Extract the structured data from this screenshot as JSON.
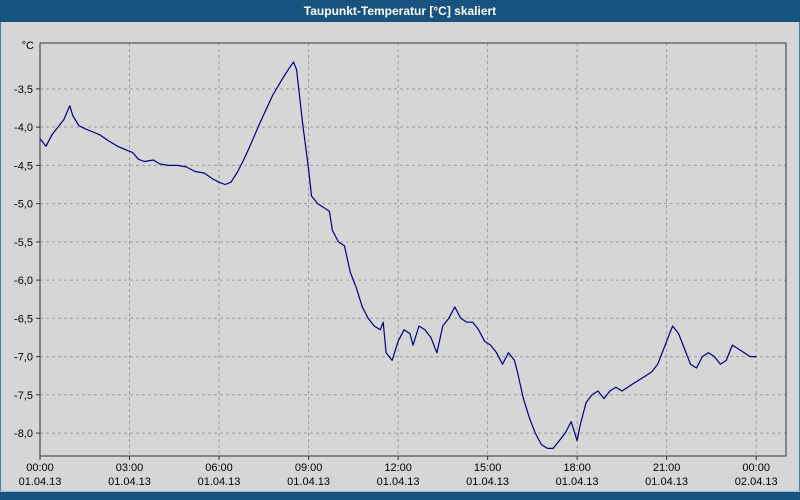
{
  "window": {
    "title": "Taupunkt-Temperatur [°C] skaliert"
  },
  "colors": {
    "title_bar_bg": "#17537e",
    "title_text": "#ffffff",
    "window_bg": "#d6d6d6",
    "grid": "#999999",
    "axis": "#333333",
    "line": "#000080",
    "label_text": "#000000"
  },
  "chart_data": {
    "type": "line",
    "title": "Taupunkt-Temperatur [°C] skaliert",
    "ylabel": "°C",
    "xlabel": "",
    "grid": "dashed",
    "legend": "none",
    "xlim": [
      0,
      25
    ],
    "ylim": [
      -8.3,
      -2.9
    ],
    "y_ticks": [
      -3.5,
      -4.0,
      -4.5,
      -5.0,
      -5.5,
      -6.0,
      -6.5,
      -7.0,
      -7.5,
      -8.0
    ],
    "y_tick_labels": [
      "-3,5",
      "-4,0",
      "-4,5",
      "-5,0",
      "-5,5",
      "-6,0",
      "-6,5",
      "-7,0",
      "-7,5",
      "-8,0"
    ],
    "x_ticks": [
      0,
      3,
      6,
      9,
      12,
      15,
      18,
      21,
      24
    ],
    "x_tick_labels": [
      {
        "time": "00:00",
        "date": "01.04.13"
      },
      {
        "time": "03:00",
        "date": "01.04.13"
      },
      {
        "time": "06:00",
        "date": "01.04.13"
      },
      {
        "time": "09:00",
        "date": "01.04.13"
      },
      {
        "time": "12:00",
        "date": "01.04.13"
      },
      {
        "time": "15:00",
        "date": "01.04.13"
      },
      {
        "time": "18:00",
        "date": "01.04.13"
      },
      {
        "time": "21:00",
        "date": "01.04.13"
      },
      {
        "time": "00:00",
        "date": "02.04.13"
      }
    ],
    "series": [
      {
        "name": "Taupunkt-Temperatur",
        "unit": "°C",
        "x_unit": "hours",
        "x": [
          0,
          0.2,
          0.4,
          0.6,
          0.8,
          1.0,
          1.1,
          1.3,
          1.5,
          1.7,
          2.0,
          2.3,
          2.6,
          2.9,
          3.1,
          3.3,
          3.5,
          3.8,
          4.0,
          4.3,
          4.6,
          4.9,
          5.2,
          5.5,
          5.8,
          6.0,
          6.2,
          6.4,
          6.6,
          6.8,
          7.0,
          7.2,
          7.4,
          7.6,
          7.8,
          8.0,
          8.2,
          8.4,
          8.5,
          8.6,
          8.7,
          8.8,
          9.0,
          9.1,
          9.2,
          9.3,
          9.5,
          9.7,
          9.8,
          10.0,
          10.2,
          10.4,
          10.6,
          10.8,
          11.0,
          11.2,
          11.4,
          11.5,
          11.6,
          11.8,
          12.0,
          12.2,
          12.4,
          12.5,
          12.7,
          12.9,
          13.1,
          13.3,
          13.5,
          13.7,
          13.9,
          14.1,
          14.3,
          14.5,
          14.7,
          14.9,
          15.1,
          15.3,
          15.5,
          15.7,
          15.9,
          16.0,
          16.2,
          16.4,
          16.6,
          16.8,
          17.0,
          17.2,
          17.4,
          17.6,
          17.8,
          18.0,
          18.1,
          18.3,
          18.5,
          18.7,
          18.9,
          19.1,
          19.3,
          19.5,
          19.7,
          19.9,
          20.1,
          20.3,
          20.5,
          20.7,
          20.9,
          21.0,
          21.2,
          21.4,
          21.6,
          21.8,
          22.0,
          22.2,
          22.4,
          22.6,
          22.8,
          23.0,
          23.2,
          23.4,
          23.6,
          23.8,
          24.0
        ],
        "y": [
          -4.15,
          -4.25,
          -4.1,
          -4.0,
          -3.9,
          -3.72,
          -3.85,
          -3.98,
          -4.02,
          -4.05,
          -4.1,
          -4.18,
          -4.25,
          -4.3,
          -4.33,
          -4.42,
          -4.45,
          -4.43,
          -4.48,
          -4.5,
          -4.5,
          -4.52,
          -4.58,
          -4.6,
          -4.68,
          -4.72,
          -4.75,
          -4.72,
          -4.6,
          -4.45,
          -4.28,
          -4.1,
          -3.92,
          -3.75,
          -3.58,
          -3.45,
          -3.32,
          -3.2,
          -3.15,
          -3.25,
          -3.6,
          -3.95,
          -4.55,
          -4.9,
          -4.95,
          -5.0,
          -5.05,
          -5.1,
          -5.35,
          -5.5,
          -5.55,
          -5.9,
          -6.1,
          -6.35,
          -6.5,
          -6.6,
          -6.65,
          -6.55,
          -6.95,
          -7.05,
          -6.8,
          -6.65,
          -6.7,
          -6.85,
          -6.6,
          -6.65,
          -6.75,
          -6.95,
          -6.6,
          -6.5,
          -6.35,
          -6.5,
          -6.55,
          -6.55,
          -6.65,
          -6.8,
          -6.85,
          -6.95,
          -7.1,
          -6.95,
          -7.05,
          -7.2,
          -7.55,
          -7.8,
          -8.0,
          -8.15,
          -8.2,
          -8.2,
          -8.1,
          -8.0,
          -7.85,
          -8.1,
          -7.9,
          -7.6,
          -7.5,
          -7.45,
          -7.55,
          -7.45,
          -7.4,
          -7.45,
          -7.4,
          -7.35,
          -7.3,
          -7.25,
          -7.2,
          -7.1,
          -6.9,
          -6.8,
          -6.6,
          -6.7,
          -6.9,
          -7.1,
          -7.15,
          -7.0,
          -6.95,
          -7.0,
          -7.1,
          -7.05,
          -6.85,
          -6.9,
          -6.95,
          -7.0,
          -7.0
        ]
      }
    ]
  }
}
